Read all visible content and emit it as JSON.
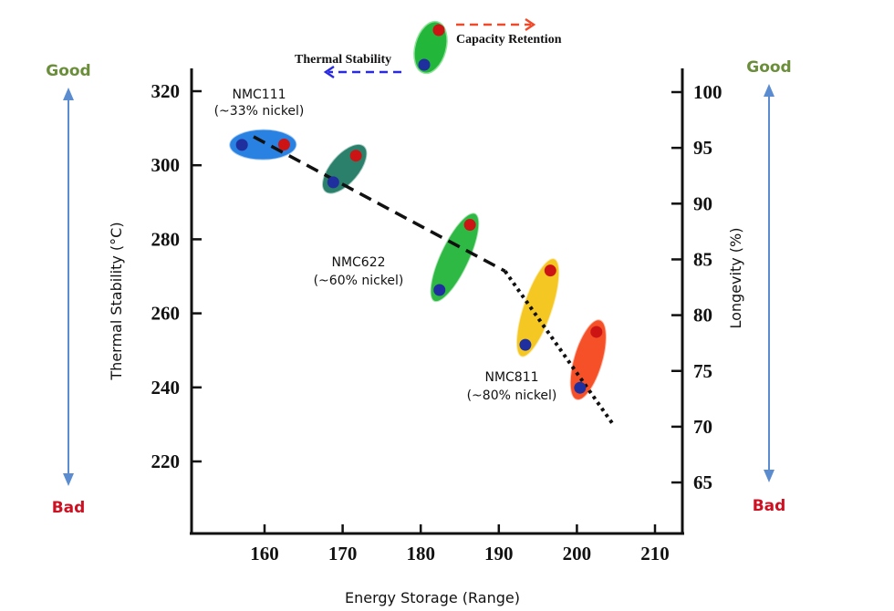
{
  "chart_data": {
    "type": "scatter",
    "xlabel": "Energy Storage (Range)",
    "ylabel_left": "Thermal Stability (°C)",
    "ylabel_right": "Longevity (%)",
    "xlim": [
      150,
      212
    ],
    "ylim_left": [
      205,
      325
    ],
    "ylim_right": [
      60,
      102
    ],
    "x_ticks": [
      "160",
      "170",
      "180",
      "190",
      "200",
      "210"
    ],
    "y_left_ticks": [
      "320",
      "300",
      "280",
      "260",
      "240",
      "220"
    ],
    "y_right_ticks": [
      "100",
      "95",
      "90",
      "85",
      "80",
      "75",
      "70",
      "65"
    ],
    "grid": false,
    "legend": {
      "placement": "top-center",
      "thermal_label": "Thermal Stability",
      "capacity_label": "Capacity Retention"
    },
    "series": [
      {
        "name": "Thermal Stability",
        "axis": "left",
        "color": "#1f2f9e",
        "x": [
          157.1,
          168.8,
          182.4,
          193.4,
          200.4
        ],
        "y": [
          305.5,
          295.4,
          266.3,
          251.5,
          239.9
        ]
      },
      {
        "name": "Capacity Retention",
        "axis": "right",
        "color": "#cc1414",
        "x": [
          162.5,
          171.7,
          186.3,
          196.6,
          202.5
        ],
        "y": [
          95.3,
          94.3,
          88.1,
          84.0,
          78.5
        ]
      }
    ],
    "group_colors": [
      "#1e7be0",
      "#1f7a64",
      "#22b63a",
      "#f5c518",
      "#f5471c"
    ],
    "trend": {
      "dashed": {
        "x": [
          158.6,
          190.8
        ],
        "y": [
          307.7,
          271.4
        ]
      },
      "dotted": {
        "x": [
          190.8,
          204.5
        ],
        "y": [
          271.4,
          230.4
        ]
      }
    },
    "annotations": [
      {
        "line1": "NMC111",
        "line2": "(~33% nickel)"
      },
      {
        "line1": "NMC622",
        "line2": "(~60% nickel)"
      },
      {
        "line1": "NMC811",
        "line2": "(~80% nickel)"
      }
    ],
    "scale_labels": {
      "good": "Good",
      "bad": "Bad",
      "good_color": "#6b8e3a",
      "bad_color": "#cc1122",
      "arrow_color": "#5b8ccf"
    }
  }
}
